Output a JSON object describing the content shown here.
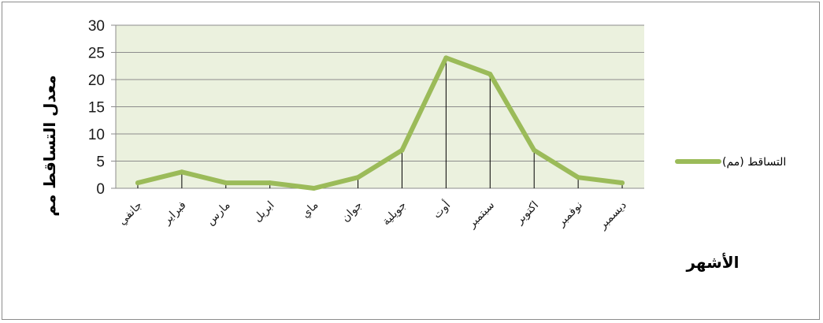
{
  "chart_data": {
    "type": "line",
    "title": "",
    "xlabel": "الأشهر",
    "ylabel": "معدل التساقط مم",
    "categories": [
      "جانفي",
      "فبراير",
      "مارس",
      "ابريل",
      "ماي",
      "جوان",
      "جويلية",
      "أوت",
      "سبتمبر",
      "اكتوبر",
      "نوفمبر",
      "ديسمبر"
    ],
    "series": [
      {
        "name": "التساقط (مم)",
        "values": [
          1,
          3,
          1,
          1,
          0,
          2,
          7,
          24,
          21,
          7,
          2,
          1
        ]
      }
    ],
    "ylim": [
      0,
      30
    ],
    "yticks": [
      0,
      5,
      10,
      15,
      20,
      25,
      30
    ],
    "grid": true,
    "drop_lines": true,
    "legend": "right",
    "colors": {
      "line": "#9bbb59",
      "plot_bg": "#ebf1de",
      "grid": "#8c8c8c"
    }
  }
}
